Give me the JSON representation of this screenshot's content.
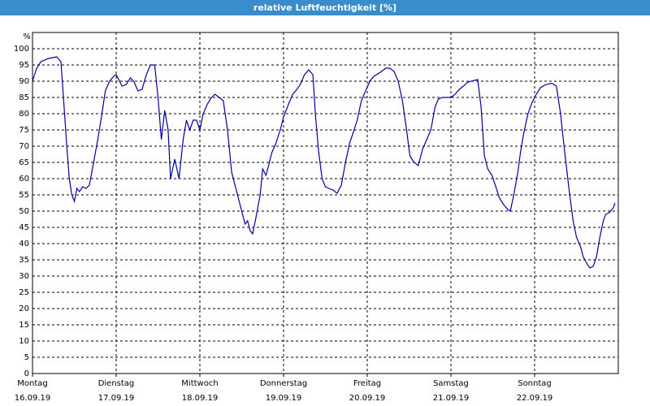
{
  "chart_data": {
    "type": "line",
    "title": "relative Luftfeuchtigkeit [%]",
    "y_label": "%",
    "color": "#0000a0",
    "grid": true,
    "xlim": [
      0,
      7
    ],
    "ylim": [
      0,
      105
    ],
    "yticks": [
      0,
      5,
      10,
      15,
      20,
      25,
      30,
      35,
      40,
      45,
      50,
      55,
      60,
      65,
      70,
      75,
      80,
      85,
      90,
      95,
      100
    ],
    "xticks": [
      {
        "value": 0,
        "label": [
          "Montag",
          "16.09.19"
        ]
      },
      {
        "value": 1,
        "label": [
          "Dienstag",
          "17.09.19"
        ]
      },
      {
        "value": 2,
        "label": [
          "Mittwoch",
          "18.09.19"
        ]
      },
      {
        "value": 3,
        "label": [
          "Donnerstag",
          "19.09.19"
        ]
      },
      {
        "value": 4,
        "label": [
          "Freitag",
          "20.09.19"
        ]
      },
      {
        "value": 5,
        "label": [
          "Samstag",
          "21.09.19"
        ]
      },
      {
        "value": 6,
        "label": [
          "Sonntag",
          "22.09.19"
        ]
      }
    ],
    "x": [
      0,
      0.05,
      0.1,
      0.19,
      0.29,
      0.34,
      0.37,
      0.41,
      0.44,
      0.47,
      0.5,
      0.53,
      0.56,
      0.6,
      0.64,
      0.68,
      0.73,
      0.78,
      0.83,
      0.87,
      0.92,
      0.97,
      1.0,
      1.03,
      1.07,
      1.12,
      1.17,
      1.21,
      1.26,
      1.31,
      1.36,
      1.41,
      1.46,
      1.5,
      1.54,
      1.58,
      1.62,
      1.65,
      1.7,
      1.75,
      1.8,
      1.84,
      1.88,
      1.92,
      1.96,
      2.0,
      2.04,
      2.09,
      2.14,
      2.18,
      2.23,
      2.28,
      2.33,
      2.38,
      2.43,
      2.48,
      2.5,
      2.54,
      2.57,
      2.6,
      2.63,
      2.67,
      2.72,
      2.75,
      2.79,
      2.82,
      2.86,
      2.91,
      2.96,
      3.0,
      3.06,
      3.11,
      3.16,
      3.2,
      3.25,
      3.3,
      3.35,
      3.38,
      3.42,
      3.46,
      3.5,
      3.54,
      3.59,
      3.64,
      3.69,
      3.74,
      3.79,
      3.83,
      3.88,
      3.93,
      3.98,
      4.03,
      4.08,
      4.13,
      4.17,
      4.22,
      4.27,
      4.32,
      4.37,
      4.42,
      4.47,
      4.51,
      4.56,
      4.61,
      4.66,
      4.71,
      4.76,
      4.81,
      4.85,
      4.9,
      4.95,
      5.0,
      5.05,
      5.1,
      5.15,
      5.19,
      5.24,
      5.32,
      5.36,
      5.4,
      5.44,
      5.49,
      5.53,
      5.58,
      5.63,
      5.68,
      5.71,
      5.75,
      5.8,
      5.83,
      5.87,
      5.92,
      5.97,
      6.02,
      6.07,
      6.12,
      6.17,
      6.21,
      6.26,
      6.31,
      6.36,
      6.41,
      6.46,
      6.5,
      6.55,
      6.58,
      6.62,
      6.66,
      6.7,
      6.74,
      6.78,
      6.82,
      6.85,
      6.89,
      6.94,
      6.96
    ],
    "values": [
      90,
      94,
      96,
      97,
      97.5,
      96,
      85,
      70,
      60,
      55,
      53,
      57,
      56,
      57.5,
      57,
      58,
      65,
      72,
      80,
      87,
      90,
      91.5,
      92,
      90.5,
      88.5,
      89,
      91,
      90,
      87,
      87.5,
      92,
      95,
      95,
      85,
      72,
      81,
      75,
      60,
      66,
      60,
      72,
      78,
      75,
      78,
      78,
      75,
      80,
      83,
      85,
      86,
      85,
      84,
      75,
      62,
      57,
      52,
      50,
      46,
      47,
      44,
      43,
      48,
      55,
      63,
      61,
      64,
      68,
      71,
      75,
      79,
      83,
      86,
      87.5,
      89,
      92,
      93.5,
      92,
      80,
      68,
      60,
      57.5,
      57,
      56.5,
      55.5,
      58,
      65,
      71,
      74,
      78,
      84,
      87,
      90,
      91.5,
      92.3,
      93,
      94,
      94,
      93,
      90,
      84,
      75,
      67,
      65,
      64,
      69,
      72,
      75,
      82,
      84.5,
      85,
      85,
      85,
      86,
      87.5,
      88.5,
      89.5,
      90,
      90.5,
      82,
      67,
      63,
      61,
      58,
      54,
      52,
      50.5,
      50,
      55,
      62,
      68,
      74,
      80,
      83.5,
      86,
      88,
      88.8,
      89.2,
      89.3,
      88.5,
      80,
      68,
      57,
      47,
      42,
      39,
      36,
      34,
      32.5,
      33,
      36,
      42,
      47,
      49,
      49.5,
      51,
      52.5
    ]
  }
}
